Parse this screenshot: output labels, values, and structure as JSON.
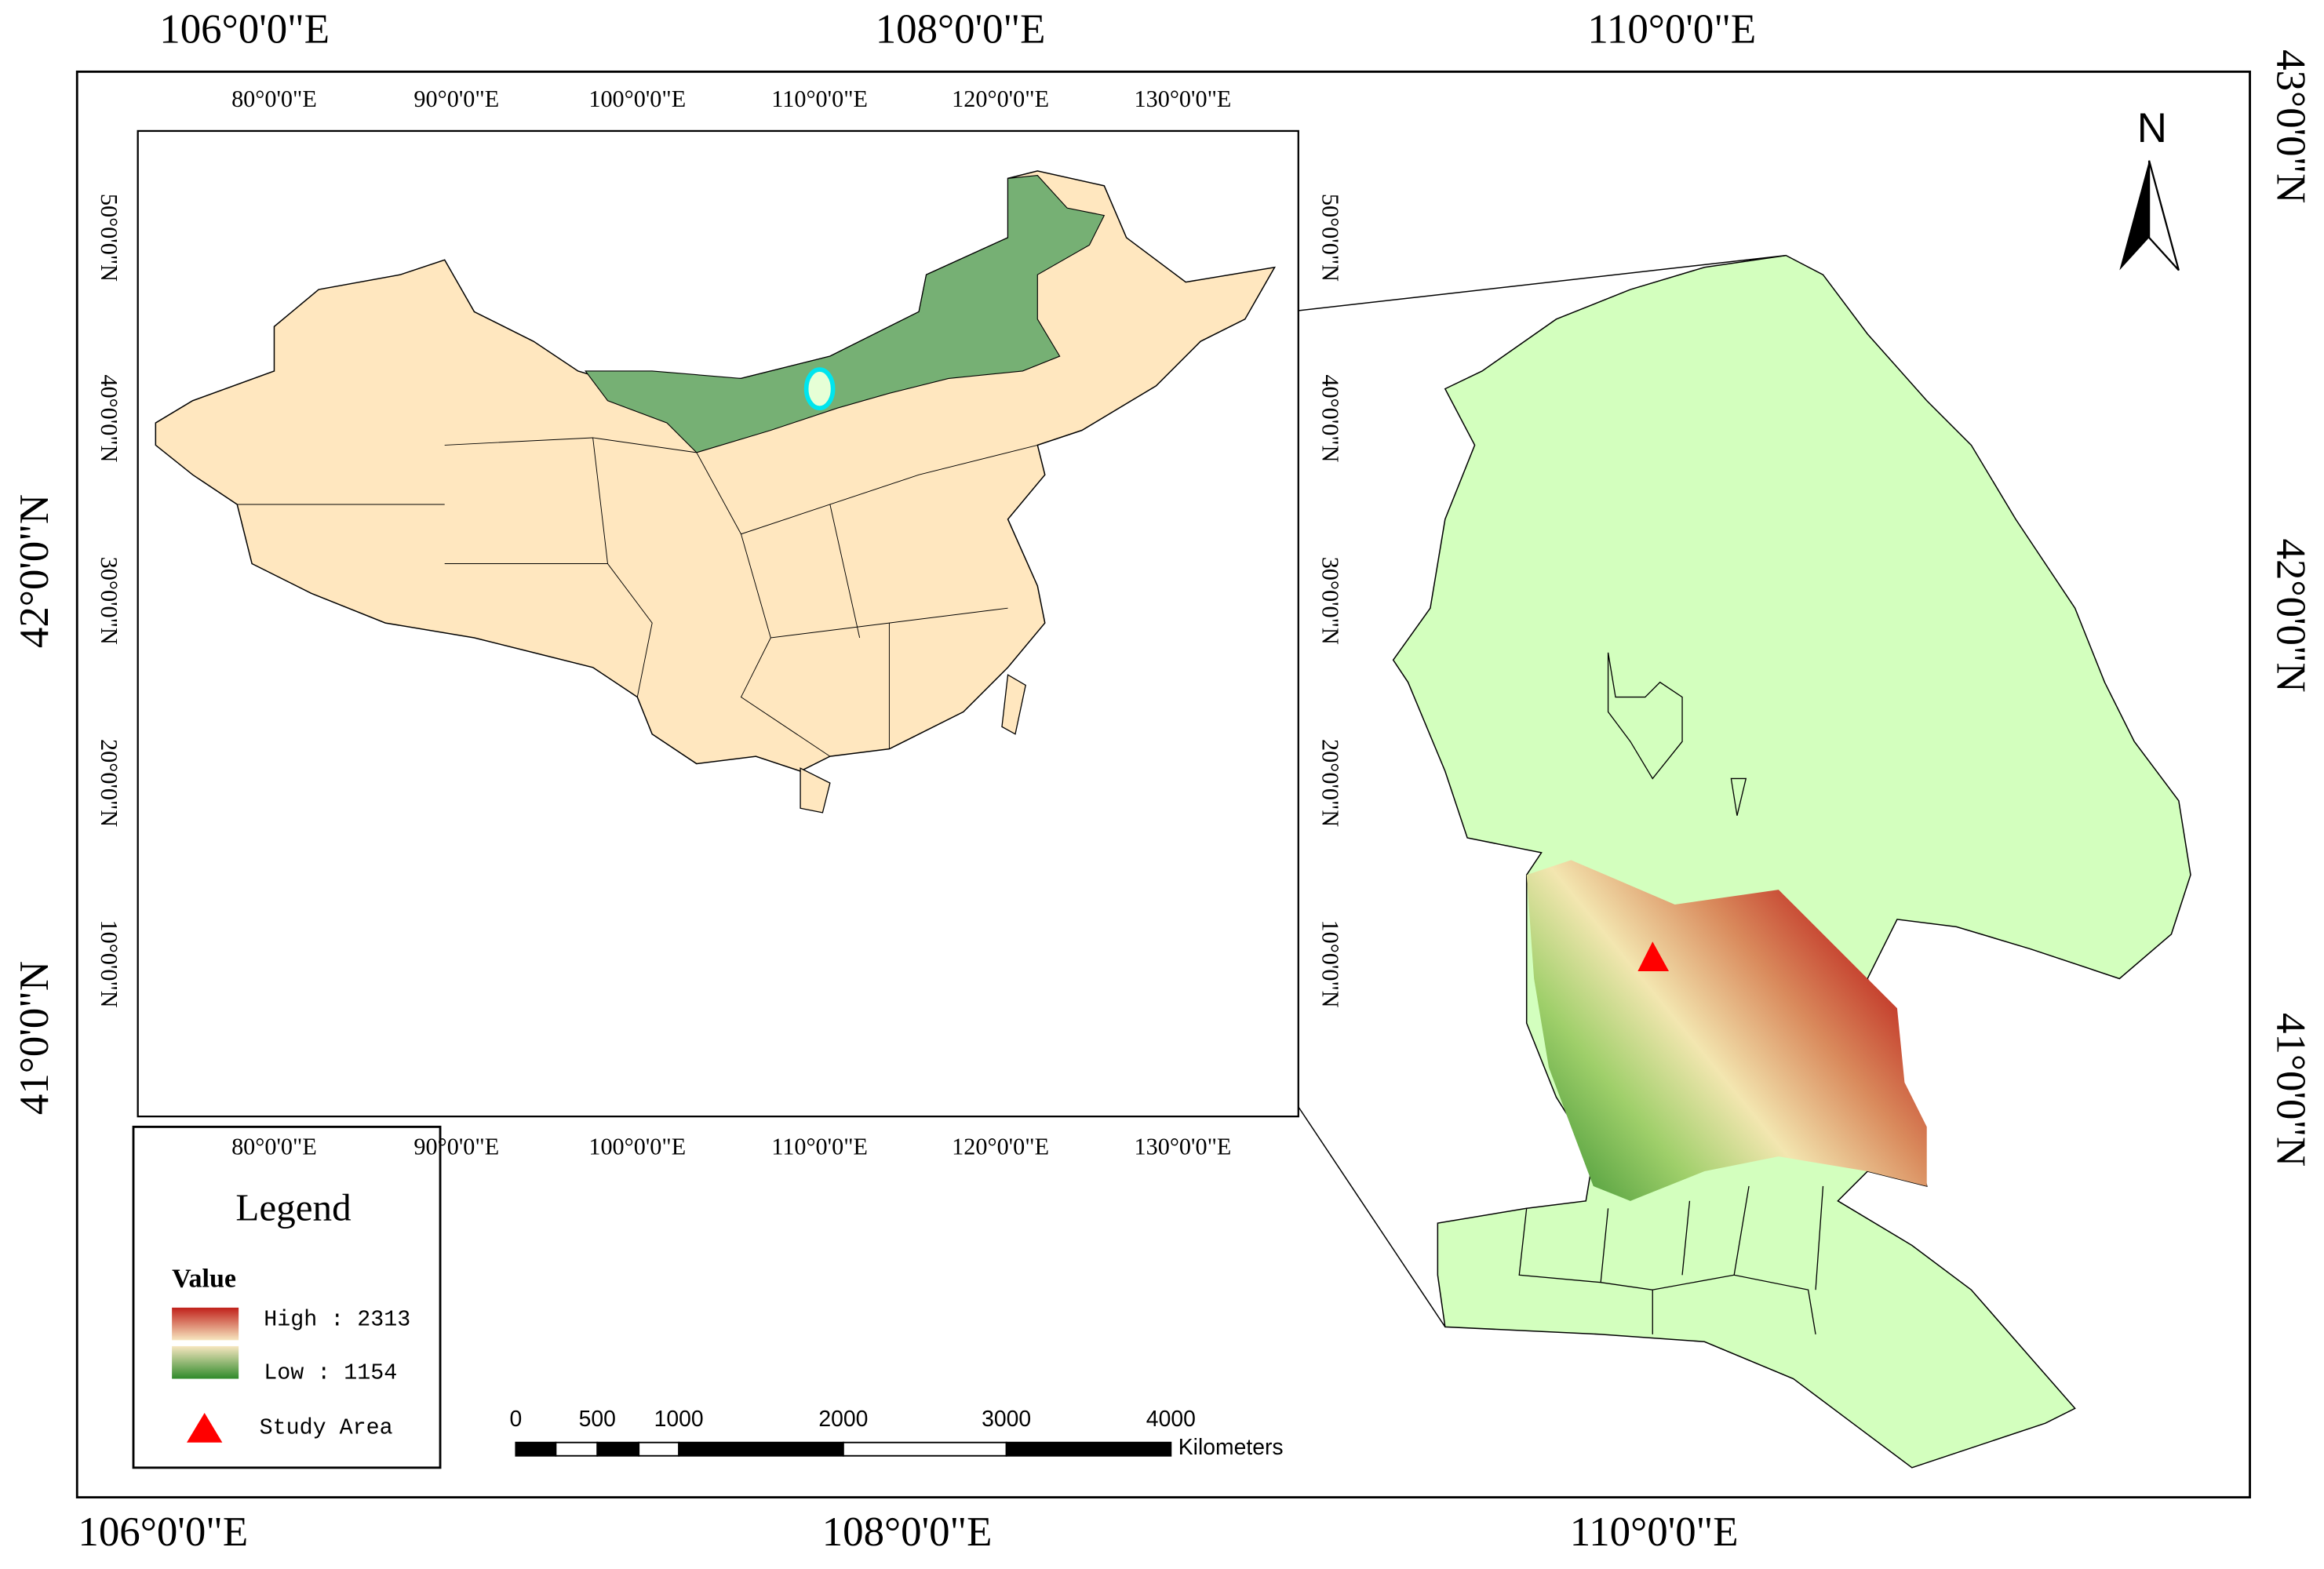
{
  "outer_axes": {
    "top": [
      "106°0'0\"E",
      "108°0'0\"E",
      "110°0'0\"E"
    ],
    "bottom": [
      "106°0'0\"E",
      "108°0'0\"E",
      "110°0'0\"E"
    ],
    "left": [
      "42°0'0\"N",
      "41°0'0\"N"
    ],
    "right": [
      "43°0'0\"N",
      "42°0'0\"N",
      "41°0'0\"N"
    ]
  },
  "inset_axes": {
    "top": [
      "80°0'0\"E",
      "90°0'0\"E",
      "100°0'0\"E",
      "110°0'0\"E",
      "120°0'0\"E",
      "130°0'0\"E"
    ],
    "bottom": [
      "80°0'0\"E",
      "90°0'0\"E",
      "100°0'0\"E",
      "110°0'0\"E",
      "120°0'0\"E",
      "130°0'0\"E"
    ],
    "left": [
      "50°0'0\"N",
      "40°0'0\"N",
      "30°0'0\"N",
      "20°0'0\"N",
      "10°0'0\"N"
    ],
    "right": [
      "50°0'0\"N",
      "40°0'0\"N",
      "30°0'0\"N",
      "20°0'0\"N",
      "10°0'0\"N"
    ]
  },
  "north_arrow": "N",
  "legend": {
    "title": "Legend",
    "field": "Value",
    "high": "High : 2313",
    "low": "Low : 1154",
    "point": "Study Area"
  },
  "scale_bar": {
    "labels": [
      "0",
      "500",
      "1000",
      "2000",
      "3000",
      "4000"
    ],
    "unit": "Kilometers"
  }
}
